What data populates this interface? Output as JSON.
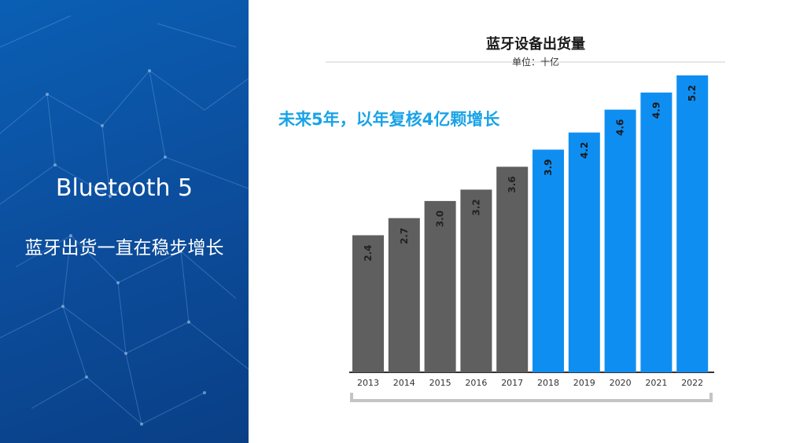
{
  "left_panel": {
    "title": "Bluetooth 5",
    "subtitle": "蓝牙出货一直在稳步增长",
    "background_color": "#0c56a8"
  },
  "chart_data": {
    "type": "bar",
    "title": "蓝牙设备出货量",
    "unit": "单位：十亿",
    "annotation": "未来5年，以年复核4亿颗增长",
    "categories": [
      "2013",
      "2014",
      "2015",
      "2016",
      "2017",
      "2018",
      "2019",
      "2020",
      "2021",
      "2022"
    ],
    "values": [
      2.4,
      2.7,
      3.0,
      3.2,
      3.6,
      3.9,
      4.2,
      4.6,
      4.9,
      5.2
    ],
    "labels": [
      "2.4",
      "2.7",
      "3.0",
      "3.2",
      "3.6",
      "3.9",
      "4.2",
      "4.6",
      "4.9",
      "5.2"
    ],
    "colors": [
      "#5f5f5f",
      "#5f5f5f",
      "#5f5f5f",
      "#5f5f5f",
      "#5f5f5f",
      "#0f8ef2",
      "#0f8ef2",
      "#0f8ef2",
      "#0f8ef2",
      "#0f8ef2"
    ],
    "ylim": [
      0,
      5.2
    ],
    "grid": false,
    "legend": "none"
  }
}
